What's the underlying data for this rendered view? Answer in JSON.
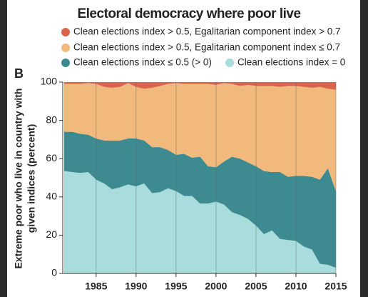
{
  "chart_data": {
    "type": "stacked_area",
    "panel_label": "B",
    "title": "Electoral democracy where poor live",
    "y_label": [
      "Extreme poor who live in country with",
      "given indices (percent)"
    ],
    "x": [
      1981,
      1982,
      1983,
      1984,
      1985,
      1986,
      1987,
      1988,
      1989,
      1990,
      1991,
      1992,
      1993,
      1994,
      1995,
      1996,
      1997,
      1998,
      1999,
      2000,
      2001,
      2002,
      2003,
      2004,
      2005,
      2006,
      2007,
      2008,
      2009,
      2010,
      2011,
      2012,
      2013,
      2014,
      2015
    ],
    "xlim": [
      1981,
      2015
    ],
    "xticks": [
      1985,
      1990,
      1995,
      2000,
      2005,
      2010,
      2015
    ],
    "ylim": [
      0,
      100
    ],
    "yticks": [
      0,
      20,
      40,
      60,
      80,
      100
    ],
    "grid": true,
    "series": [
      {
        "name": "Clean elections index > 0.5, Egalitarian component index > 0.7",
        "color": "#d9664a",
        "values": [
          1,
          1,
          1,
          0.5,
          1,
          2.5,
          3,
          2.5,
          0.5,
          2.5,
          3.5,
          3,
          2,
          1,
          0.5,
          1,
          1,
          1,
          1,
          1.5,
          0.5,
          1,
          2,
          1.5,
          2,
          2,
          2,
          2.5,
          2,
          2,
          2.5,
          3,
          2.5,
          3.5,
          4
        ]
      },
      {
        "name": "Clean elections index > 0.5, Egalitarian component index ≤ 0.7",
        "color": "#f2b97c",
        "values": [
          25,
          25,
          26,
          27,
          28.5,
          28,
          27.5,
          28,
          29,
          27,
          27,
          31,
          32,
          34.5,
          37.5,
          36.5,
          38.5,
          38,
          43,
          43,
          41,
          38,
          38,
          40.5,
          42,
          44.5,
          45,
          44.5,
          47.5,
          47,
          46.5,
          46.5,
          48.5,
          41.5,
          53
        ]
      },
      {
        "name": "Clean elections index ≤ 0.5 (> 0)",
        "color": "#3e8a91",
        "values": [
          20.5,
          21,
          20.5,
          19.5,
          21.5,
          22.5,
          25.5,
          24.5,
          24,
          25,
          22.5,
          24,
          23.5,
          20,
          19,
          22,
          20,
          24.5,
          19.5,
          18,
          22.5,
          29,
          29.5,
          29.5,
          31,
          33,
          30.5,
          35,
          33,
          34,
          37,
          38,
          44,
          50.5,
          40
        ]
      },
      {
        "name": "Clean elections index = 0",
        "color": "#a9dcdc",
        "values": [
          53.5,
          53,
          52.5,
          53,
          49,
          47,
          44,
          45,
          46.5,
          45.5,
          47,
          42,
          42.5,
          44.5,
          43,
          40.5,
          40.5,
          36.5,
          36.5,
          37.5,
          36,
          32,
          30.5,
          28.5,
          25,
          20.5,
          22.5,
          18,
          17.5,
          17,
          14,
          12.5,
          5,
          4.5,
          3
        ]
      }
    ]
  }
}
